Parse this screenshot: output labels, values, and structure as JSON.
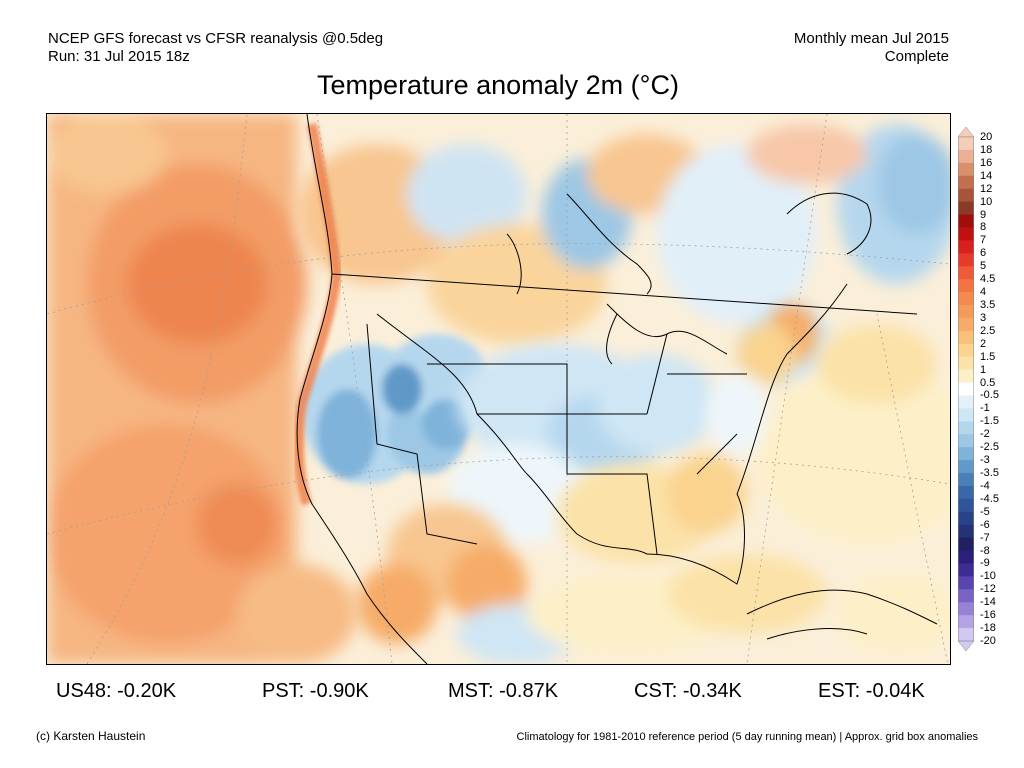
{
  "header": {
    "left_line1": "NCEP GFS forecast vs CFSR reanalysis @0.5deg",
    "left_line2": "Run: 31 Jul 2015 18z",
    "right_line1": "Monthly mean Jul 2015",
    "right_line2": "Complete"
  },
  "title": "Temperature anomaly 2m (°C)",
  "colorbar": {
    "labels": [
      "20",
      "18",
      "16",
      "14",
      "12",
      "10",
      "9",
      "8",
      "7",
      "6",
      "5",
      "4.5",
      "4",
      "3.5",
      "3",
      "2.5",
      "2",
      "1.5",
      "1",
      "0.5",
      "-0.5",
      "-1",
      "-1.5",
      "-2",
      "-2.5",
      "-3",
      "-3.5",
      "-4",
      "-4.5",
      "-5",
      "-6",
      "-7",
      "-8",
      "-9",
      "-10",
      "-12",
      "-14",
      "-16",
      "-18",
      "-20"
    ],
    "colors": [
      "#f6cdb6",
      "#ebb093",
      "#d8906d",
      "#c1704f",
      "#a8543a",
      "#8a3a26",
      "#a00d0d",
      "#c01010",
      "#d82020",
      "#e63a2a",
      "#ef5a38",
      "#f37343",
      "#f48a50",
      "#f59b5a",
      "#f6ac68",
      "#f8c078",
      "#fad38e",
      "#fbe2a8",
      "#fdf0c8",
      "#ffffff",
      "#e4f1fa",
      "#cfe6f5",
      "#b5d7ee",
      "#9cc7e5",
      "#7fb3da",
      "#6199c9",
      "#4a7fba",
      "#3a67a8",
      "#2f5499",
      "#294388",
      "#243276",
      "#221f62",
      "#2a1f7a",
      "#3e2c95",
      "#5a45ae",
      "#7a63c4",
      "#9782d5",
      "#b3a3e4",
      "#d2c8f2"
    ]
  },
  "stats": [
    {
      "label": "US48: -0.20K"
    },
    {
      "label": "PST: -0.90K"
    },
    {
      "label": "MST: -0.87K"
    },
    {
      "label": "CST: -0.34K"
    },
    {
      "label": "EST: -0.04K"
    }
  ],
  "footer": {
    "left": "(c) Karsten Haustein",
    "right": "Climatology for 1981-2010 reference period (5 day running mean) | Approx. grid box anomalies"
  }
}
